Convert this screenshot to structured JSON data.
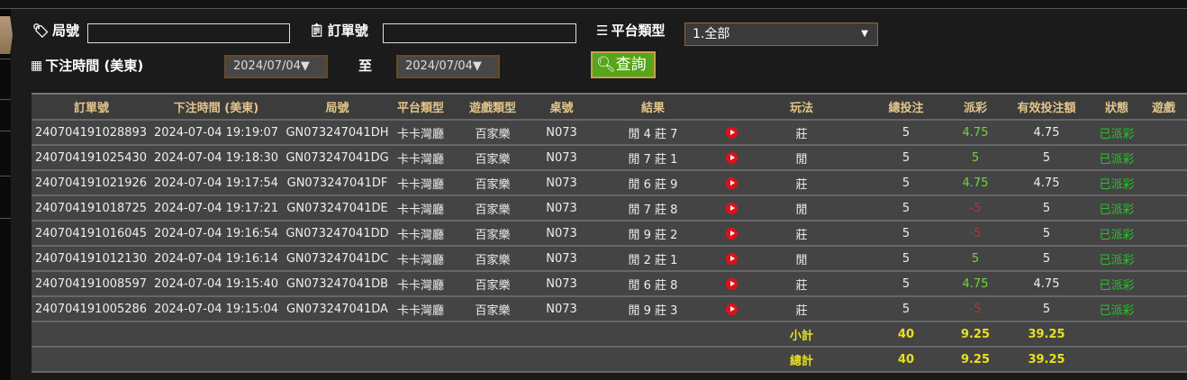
{
  "filters": {
    "round_label": "局號",
    "round_value": "",
    "order_label": "訂單號",
    "order_value": "",
    "platform_label": "平台類型",
    "platform_selected": "1.全部",
    "time_label": "下注時間 (美東)",
    "date_from": "2024/07/04▼",
    "to_label": "至",
    "date_to": "2024/07/04▼",
    "query_button": "查詢"
  },
  "table": {
    "headers": [
      "訂單號",
      "下注時間 (美東)",
      "局號",
      "平台類型",
      "遊戲類型",
      "桌號",
      "結果",
      "",
      "玩法",
      "總投注",
      "派彩",
      "有效投注額",
      "狀態",
      "遊戲"
    ],
    "rows": [
      [
        "240704191028893",
        "2024-07-04 19:19:07",
        "GN073247041DH",
        "卡卡灣廳",
        "百家樂",
        "N073",
        "閒 4 莊 7",
        "莊",
        "5",
        "4.75",
        "4.75",
        "已派彩"
      ],
      [
        "240704191025430",
        "2024-07-04 19:18:30",
        "GN073247041DG",
        "卡卡灣廳",
        "百家樂",
        "N073",
        "閒 7 莊 1",
        "閒",
        "5",
        "5",
        "5",
        "已派彩"
      ],
      [
        "240704191021926",
        "2024-07-04 19:17:54",
        "GN073247041DF",
        "卡卡灣廳",
        "百家樂",
        "N073",
        "閒 6 莊 9",
        "莊",
        "5",
        "4.75",
        "4.75",
        "已派彩"
      ],
      [
        "240704191018725",
        "2024-07-04 19:17:21",
        "GN073247041DE",
        "卡卡灣廳",
        "百家樂",
        "N073",
        "閒 7 莊 8",
        "閒",
        "5",
        "-5",
        "5",
        "已派彩"
      ],
      [
        "240704191016045",
        "2024-07-04 19:16:54",
        "GN073247041DD",
        "卡卡灣廳",
        "百家樂",
        "N073",
        "閒 9 莊 2",
        "莊",
        "5",
        "-5",
        "5",
        "已派彩"
      ],
      [
        "240704191012130",
        "2024-07-04 19:16:14",
        "GN073247041DC",
        "卡卡灣廳",
        "百家樂",
        "N073",
        "閒 2 莊 1",
        "閒",
        "5",
        "5",
        "5",
        "已派彩"
      ],
      [
        "240704191008597",
        "2024-07-04 19:15:40",
        "GN073247041DB",
        "卡卡灣廳",
        "百家樂",
        "N073",
        "閒 6 莊 8",
        "莊",
        "5",
        "4.75",
        "4.75",
        "已派彩"
      ],
      [
        "240704191005286",
        "2024-07-04 19:15:04",
        "GN073247041DA",
        "卡卡灣廳",
        "百家樂",
        "N073",
        "閒 9 莊 3",
        "莊",
        "5",
        "-5",
        "5",
        "已派彩"
      ]
    ],
    "subtotal": {
      "label": "小計",
      "bet": "40",
      "payout": "9.25",
      "valid": "39.25"
    },
    "total": {
      "label": "總計",
      "bet": "40",
      "payout": "9.25",
      "valid": "39.25"
    }
  },
  "colors": {
    "win": "#6fd43a",
    "lose": "#b3343a",
    "status": "#29c12a",
    "header_text": "#e3c58a",
    "sum_text": "#e8e020",
    "query_button": "#56a51a"
  }
}
